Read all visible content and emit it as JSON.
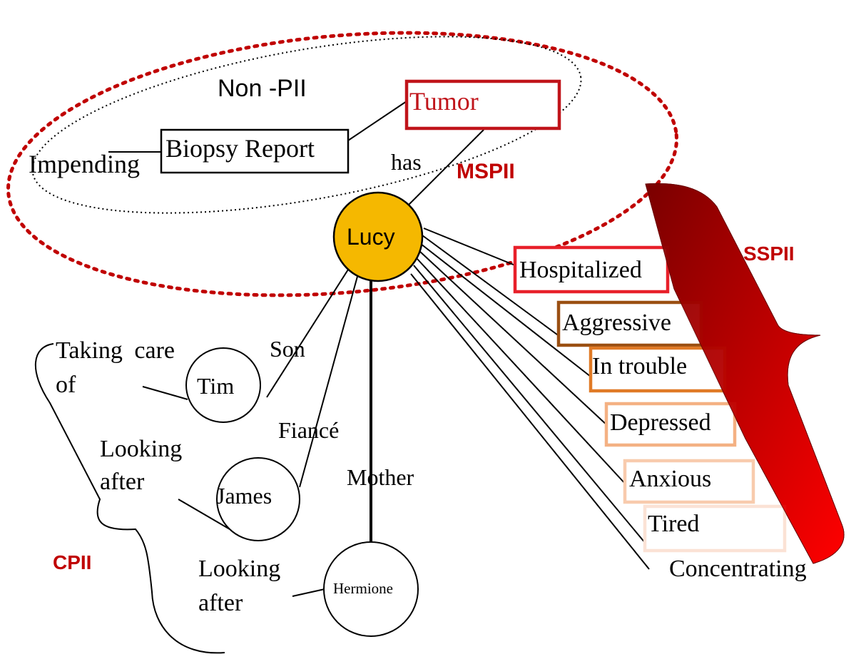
{
  "colors": {
    "ink": "#000000",
    "lucy_fill": "#f5b800",
    "label_red": "#c00000",
    "tumor_border": "#c0141a",
    "hospitalized_border": "#e8202a",
    "aggressive_border": "#9a4f12",
    "trouble_border": "#e07a26",
    "depressed_border": "#f4b183",
    "anxious_border": "#f8cbad",
    "tired_border": "#fbe2d5",
    "brace_dark": "#7a0000",
    "brace_light": "#ff0000"
  },
  "zones": {
    "non_pii": "Non -PII",
    "mspii": "MSPII",
    "sspii": "SSPII",
    "cpii": "CPII"
  },
  "nodes": {
    "lucy": "Lucy",
    "tim": "Tim",
    "james": "James",
    "hermione": "Hermione"
  },
  "boxes": {
    "tumor": "Tumor",
    "biopsy_report": "Biopsy Report",
    "impending": "Impending"
  },
  "relations": {
    "has": "has",
    "son": "Son",
    "fiance": "Fiancé",
    "mother": "Mother",
    "taking_care_line1": "Taking care",
    "taking_care_line2": "of",
    "looking_after_1_line1": "Looking",
    "looking_after_1_line2": "after",
    "looking_after_2_line1": "Looking",
    "looking_after_2_line2": "after"
  },
  "states": {
    "hospitalized": "Hospitalized",
    "aggressive": "Aggressive",
    "in_trouble": "In trouble",
    "depressed": "Depressed",
    "anxious": "Anxious",
    "tired": "Tired",
    "concentrating": "Concentrating"
  }
}
